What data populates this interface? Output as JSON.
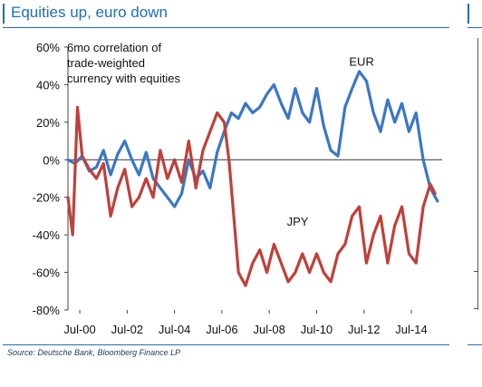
{
  "figure": {
    "title": "Equities up, euro down",
    "source": "Source: Deutsche Bank, Bloomberg Finance LP"
  },
  "chart_data": {
    "type": "line",
    "title": "Equities up, euro down",
    "annotation": [
      "6mo correlation  of",
      "trade-weighted",
      "currency with equities"
    ],
    "xlabel": "",
    "ylabel": "",
    "x_tick_labels": [
      "Jul-00",
      "Jul-02",
      "Jul-04",
      "Jul-06",
      "Jul-08",
      "Jul-10",
      "Jul-12",
      "Jul-14"
    ],
    "x_tick_values": [
      2000.5,
      2002.5,
      2004.5,
      2006.5,
      2008.5,
      2010.5,
      2012.5,
      2014.5
    ],
    "xlim": [
      2000.0,
      2015.8
    ],
    "y_tick_labels": [
      "60%",
      "40%",
      "20%",
      "0%",
      "-20%",
      "-40%",
      "-60%",
      "-80%"
    ],
    "y_tick_values": [
      60,
      40,
      20,
      0,
      -20,
      -40,
      -60,
      -80
    ],
    "ylim": [
      -80,
      60
    ],
    "grid": false,
    "series": [
      {
        "name": "EUR",
        "color": "#3b77c4",
        "x": [
          2000.0,
          2000.3,
          2000.6,
          2000.9,
          2001.2,
          2001.5,
          2001.8,
          2002.1,
          2002.4,
          2002.7,
          2003.0,
          2003.3,
          2003.6,
          2003.9,
          2004.2,
          2004.5,
          2004.8,
          2005.1,
          2005.4,
          2005.7,
          2006.0,
          2006.3,
          2006.6,
          2006.9,
          2007.2,
          2007.5,
          2007.8,
          2008.1,
          2008.4,
          2008.7,
          2009.0,
          2009.3,
          2009.6,
          2009.9,
          2010.2,
          2010.5,
          2010.8,
          2011.1,
          2011.4,
          2011.7,
          2012.0,
          2012.3,
          2012.6,
          2012.9,
          2013.2,
          2013.5,
          2013.8,
          2014.1,
          2014.4,
          2014.7,
          2015.0,
          2015.3,
          2015.6
        ],
        "y": [
          0,
          -2,
          2,
          -6,
          -4,
          5,
          -8,
          3,
          10,
          0,
          -8,
          4,
          -10,
          -15,
          -20,
          -25,
          -18,
          0,
          -10,
          -6,
          -15,
          4,
          15,
          25,
          22,
          30,
          25,
          28,
          35,
          40,
          30,
          22,
          38,
          25,
          20,
          38,
          18,
          5,
          2,
          28,
          38,
          47,
          42,
          25,
          15,
          32,
          20,
          30,
          15,
          25,
          0,
          -15,
          -22
        ]
      },
      {
        "name": "JPY",
        "color": "#c0403a",
        "x": [
          2000.0,
          2000.2,
          2000.4,
          2000.6,
          2000.9,
          2001.2,
          2001.5,
          2001.8,
          2002.1,
          2002.4,
          2002.7,
          2003.0,
          2003.3,
          2003.6,
          2003.9,
          2004.2,
          2004.5,
          2004.8,
          2005.1,
          2005.4,
          2005.7,
          2006.0,
          2006.3,
          2006.6,
          2006.8,
          2007.0,
          2007.2,
          2007.5,
          2007.8,
          2008.1,
          2008.4,
          2008.7,
          2009.0,
          2009.3,
          2009.6,
          2009.9,
          2010.2,
          2010.5,
          2010.8,
          2011.1,
          2011.4,
          2011.7,
          2012.0,
          2012.3,
          2012.6,
          2012.9,
          2013.2,
          2013.5,
          2013.8,
          2014.1,
          2014.4,
          2014.7,
          2015.0,
          2015.3,
          2015.5
        ],
        "y": [
          -20,
          -40,
          28,
          2,
          -5,
          -10,
          -2,
          -30,
          -15,
          -5,
          -25,
          -20,
          -10,
          -20,
          5,
          -10,
          0,
          -12,
          10,
          -15,
          5,
          15,
          25,
          20,
          0,
          -30,
          -60,
          -67,
          -55,
          -48,
          -60,
          -45,
          -55,
          -65,
          -60,
          -50,
          -60,
          -50,
          -60,
          -65,
          -50,
          -45,
          -30,
          -25,
          -55,
          -40,
          -30,
          -55,
          -35,
          -25,
          -50,
          -55,
          -25,
          -13,
          -18
        ]
      }
    ],
    "series_labels": [
      {
        "text": "EUR",
        "x": 2012.4,
        "y": 50
      },
      {
        "text": "JPY",
        "x": 2009.7,
        "y": -35
      }
    ]
  }
}
